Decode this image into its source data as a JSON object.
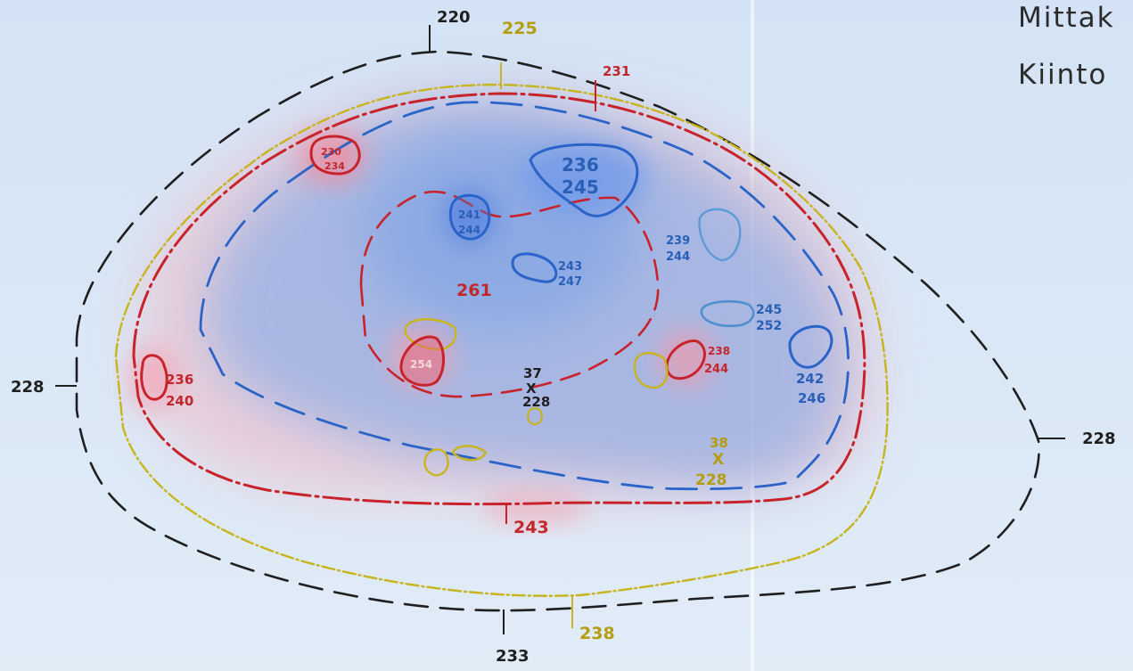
{
  "title_lines": [
    "Mittak",
    "Kiinto"
  ],
  "colors": {
    "black": "#1f1f1f",
    "yellow": "#c8b41c",
    "red": "#c8232a",
    "blue": "#2a64c8",
    "light_blue": "#4f8fd0",
    "yellow_text": "#b59c10",
    "red_text": "#c0282d",
    "blue_text": "#2a5fb8"
  },
  "contour_labels": {
    "black_top": "220",
    "black_bottom": "233",
    "black_left": "228",
    "black_right": "228",
    "yellow_top": "225",
    "yellow_bottom": "238",
    "red_top": "231",
    "red_bottom": "243"
  },
  "depressions": {
    "upper_left_red": [
      "230",
      "234"
    ],
    "left_red": [
      "236",
      "240"
    ],
    "top_blue_large": [
      "236",
      "245"
    ],
    "blue_small_left": [
      "241",
      "244"
    ],
    "blue_oval_mid": [
      "243",
      "247"
    ],
    "light_blue_right": [
      "239",
      "244"
    ],
    "light_blue_oval": [
      "245",
      "252"
    ],
    "blue_right": [
      "242",
      "246"
    ],
    "red_right": [
      "238",
      "244"
    ],
    "red_bottom_left_center": "254"
  },
  "center_peak": "261",
  "points": {
    "p37": {
      "id": "37",
      "height": "228",
      "marker": "X"
    },
    "p38": {
      "id": "38",
      "height": "228",
      "marker": "X"
    }
  }
}
